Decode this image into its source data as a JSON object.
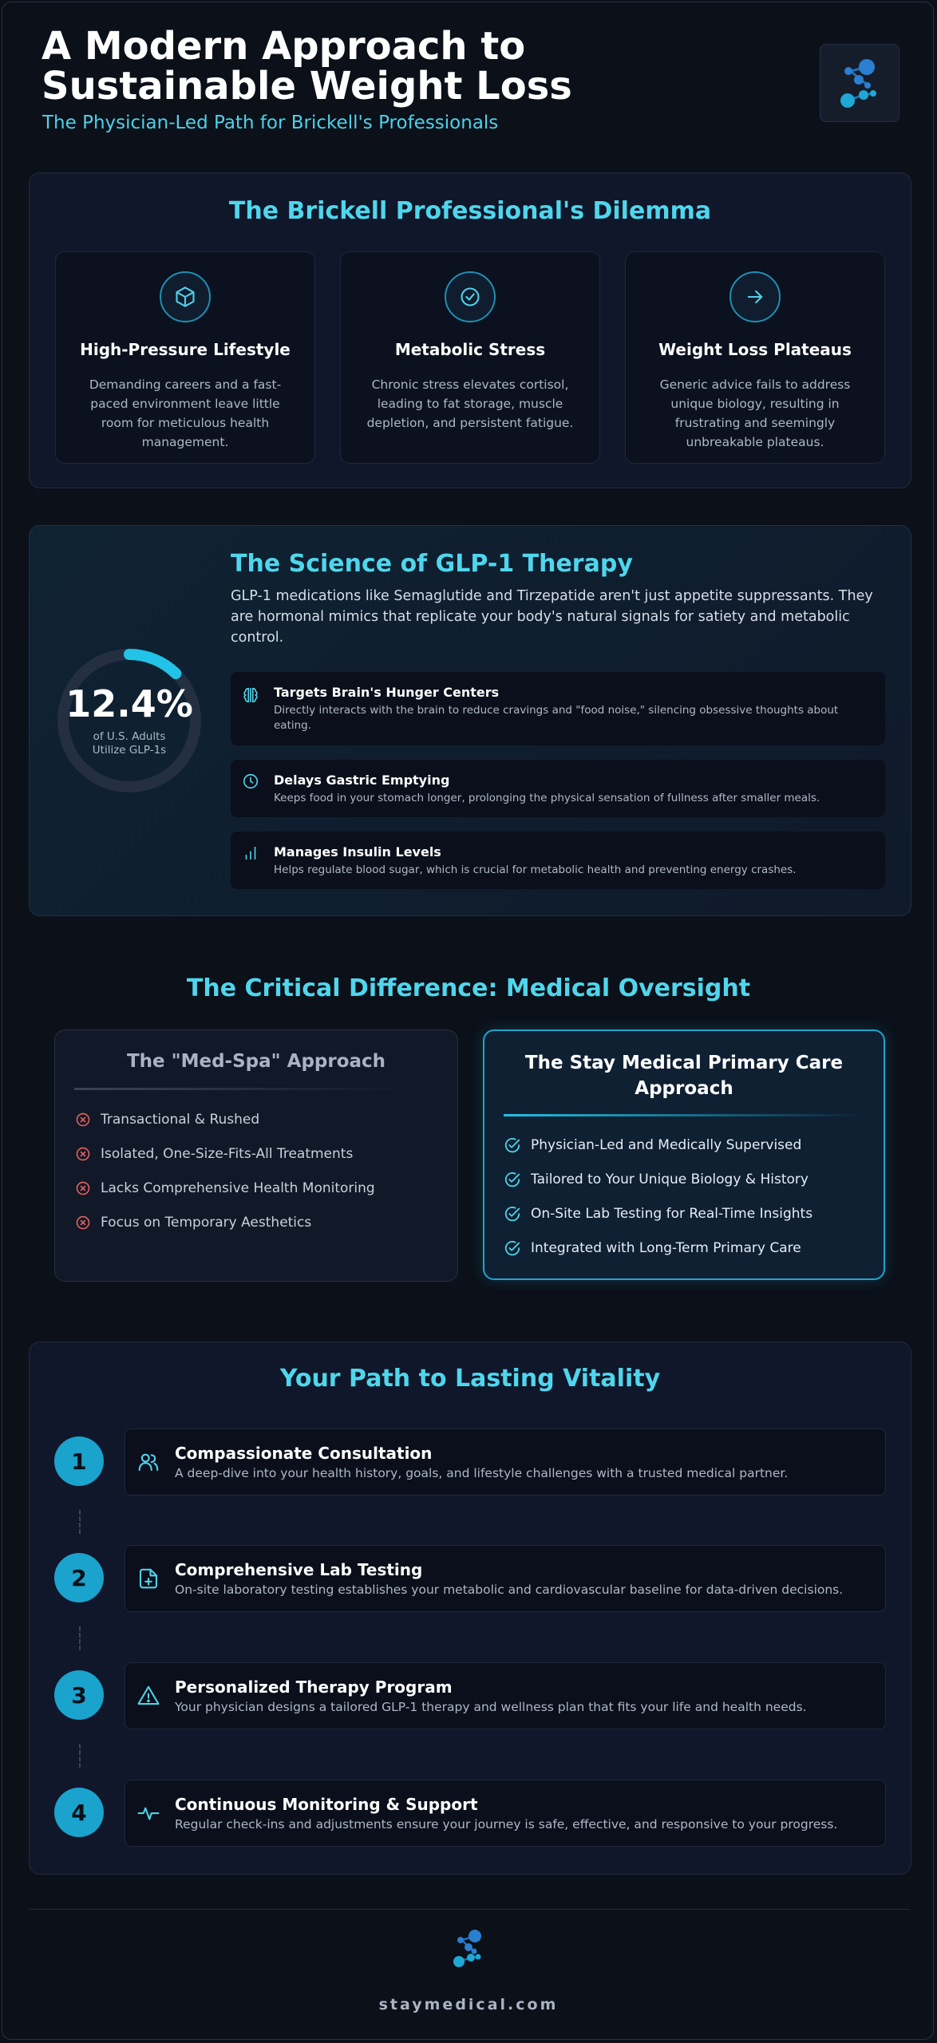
{
  "header": {
    "title": "A Modern Approach to Sustainable Weight Loss",
    "subtitle": "The Physician-Led Path for Brickell's Professionals",
    "logo_icon": "molecule-logo-icon"
  },
  "dilemma": {
    "title": "The Brickell Professional's Dilemma",
    "cards": [
      {
        "icon": "cube-icon",
        "title": "High-Pressure Lifestyle",
        "text": "Demanding careers and a fast-paced environment leave little room for meticulous health management."
      },
      {
        "icon": "check-circle-icon",
        "title": "Metabolic Stress",
        "text": "Chronic stress elevates cortisol, leading to fat storage, muscle depletion, and persistent fatigue."
      },
      {
        "icon": "arrow-right-icon",
        "title": "Weight Loss Plateaus",
        "text": "Generic advice fails to address unique biology, resulting in frustrating and seemingly unbreakable plateaus."
      }
    ]
  },
  "science": {
    "title": "The Science of GLP-1 Therapy",
    "intro": "GLP-1 medications like Semaglutide and Tirzepatide aren't just appetite suppressants. They are hormonal mimics that replicate your body's natural signals for satiety and metabolic control.",
    "stat_value": "12.4%",
    "stat_percent": 12.4,
    "stat_label_1": "of U.S. Adults",
    "stat_label_2": "Utilize GLP-1s",
    "features": [
      {
        "icon": "brain-icon",
        "title": "Targets Brain's Hunger Centers",
        "text": "Directly interacts with the brain to reduce cravings and \"food noise,\" silencing obsessive thoughts about eating."
      },
      {
        "icon": "clock-icon",
        "title": "Delays Gastric Emptying",
        "text": "Keeps food in your stomach longer, prolonging the physical sensation of fullness after smaller meals."
      },
      {
        "icon": "bar-chart-icon",
        "title": "Manages Insulin Levels",
        "text": "Helps regulate blood sugar, which is crucial for metabolic health and preventing energy crashes."
      }
    ]
  },
  "difference": {
    "title": "The Critical Difference: Medical Oversight",
    "medspa": {
      "title": "The \"Med-Spa\" Approach",
      "items": [
        "Transactional & Rushed",
        "Isolated, One-Size-Fits-All Treatments",
        "Lacks Comprehensive Health Monitoring",
        "Focus on Temporary Aesthetics"
      ]
    },
    "staymedical": {
      "title_1": "The Stay Medical Primary Care",
      "title_2": "Approach",
      "items": [
        "Physician-Led and Medically Supervised",
        "Tailored to Your Unique Biology & History",
        "On-Site Lab Testing for Real-Time Insights",
        "Integrated with Long-Term Primary Care"
      ]
    }
  },
  "path": {
    "title": "Your Path to Lasting Vitality",
    "steps": [
      {
        "num": "1",
        "icon": "users-icon",
        "title": "Compassionate Consultation",
        "text": "A deep-dive into your health history, goals, and lifestyle challenges with a trusted medical partner."
      },
      {
        "num": "2",
        "icon": "file-plus-icon",
        "title": "Comprehensive Lab Testing",
        "text": "On-site laboratory testing establishes your metabolic and cardiovascular baseline for data-driven decisions."
      },
      {
        "num": "3",
        "icon": "warning-triangle-icon",
        "title": "Personalized Therapy Program",
        "text": "Your physician designs a tailored GLP-1 therapy and wellness plan that fits your life and health needs."
      },
      {
        "num": "4",
        "icon": "pulse-icon",
        "title": "Continuous Monitoring & Support",
        "text": "Regular check-ins and adjustments ensure your journey is safe, effective, and responsive to your progress."
      }
    ]
  },
  "footer": {
    "domain": "staymedical.com"
  }
}
